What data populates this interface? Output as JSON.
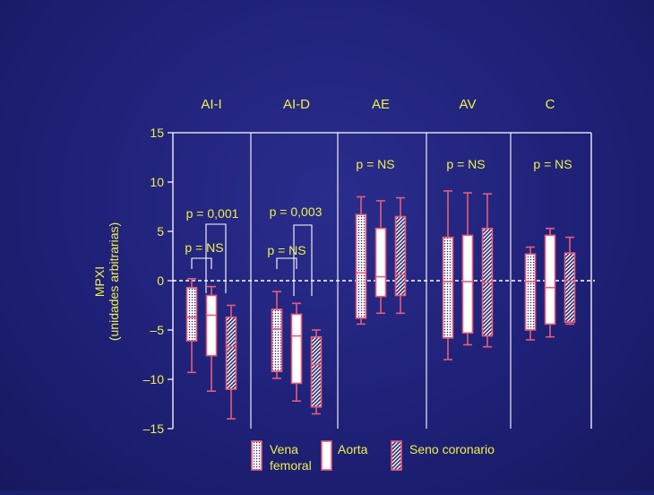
{
  "chart_data": {
    "type": "box",
    "ylabel": "MPXI",
    "ylabel2": "(unidades arbitrarias)",
    "ylim": [
      -15,
      15
    ],
    "yticks": [
      {
        "v": 15,
        "label": "15"
      },
      {
        "v": 10,
        "label": "10"
      },
      {
        "v": 5,
        "label": "5"
      },
      {
        "v": 0,
        "label": "0"
      },
      {
        "v": -5,
        "label": "–5"
      },
      {
        "v": -10,
        "label": "–10"
      },
      {
        "v": -15,
        "label": "–15"
      }
    ],
    "groups": [
      {
        "label": "AI-I",
        "p_values": [
          "p = 0,001",
          "p = NS"
        ],
        "boxes": [
          {
            "series": "Vena femoral",
            "whisker_low": -9.3,
            "q1": -6.1,
            "median": -3.7,
            "q3": -0.7,
            "whisker_high": 0.2
          },
          {
            "series": "Aorta",
            "whisker_low": -11.2,
            "q1": -7.6,
            "median": -3.5,
            "q3": -1.5,
            "whisker_high": -0.6
          },
          {
            "series": "Seno coronario",
            "whisker_low": -14.0,
            "q1": -11.0,
            "median": -6.7,
            "q3": -3.7,
            "whisker_high": -2.5
          }
        ]
      },
      {
        "label": "AI-D",
        "p_values": [
          "p = 0,003",
          "p = NS"
        ],
        "boxes": [
          {
            "series": "Vena femoral",
            "whisker_low": -9.9,
            "q1": -9.2,
            "median": -4.9,
            "q3": -2.9,
            "whisker_high": -1.1
          },
          {
            "series": "Aorta",
            "whisker_low": -12.2,
            "q1": -10.4,
            "median": -5.6,
            "q3": -3.4,
            "whisker_high": -2.3
          },
          {
            "series": "Seno coronario",
            "whisker_low": -13.5,
            "q1": -12.8,
            "median": -8.5,
            "q3": -5.7,
            "whisker_high": -5.0
          }
        ]
      },
      {
        "label": "AE",
        "p_values": [
          "p = NS"
        ],
        "boxes": [
          {
            "series": "Vena femoral",
            "whisker_low": -4.4,
            "q1": -3.8,
            "median": 0.8,
            "q3": 6.7,
            "whisker_high": 8.5
          },
          {
            "series": "Aorta",
            "whisker_low": -3.3,
            "q1": -1.6,
            "median": 0.4,
            "q3": 5.3,
            "whisker_high": 8.1
          },
          {
            "series": "Seno coronario",
            "whisker_low": -3.3,
            "q1": -1.5,
            "median": 0.6,
            "q3": 6.5,
            "whisker_high": 8.4
          }
        ]
      },
      {
        "label": "AV",
        "p_values": [
          "p = NS"
        ],
        "boxes": [
          {
            "series": "Vena femoral",
            "whisker_low": -8.0,
            "q1": -5.8,
            "median": -0.1,
            "q3": 4.4,
            "whisker_high": 9.1
          },
          {
            "series": "Aorta",
            "whisker_low": -6.5,
            "q1": -5.3,
            "median": -0.1,
            "q3": 4.6,
            "whisker_high": 8.9
          },
          {
            "series": "Seno coronario",
            "whisker_low": -6.7,
            "q1": -5.6,
            "median": -0.2,
            "q3": 5.3,
            "whisker_high": 8.8
          }
        ]
      },
      {
        "label": "C",
        "p_values": [
          "p = NS"
        ],
        "boxes": [
          {
            "series": "Vena femoral",
            "whisker_low": -6.0,
            "q1": -5.0,
            "median": -0.1,
            "q3": 2.7,
            "whisker_high": 3.4
          },
          {
            "series": "Aorta",
            "whisker_low": -5.7,
            "q1": -4.4,
            "median": -0.7,
            "q3": 4.6,
            "whisker_high": 5.3
          },
          {
            "series": "Seno coronario",
            "whisker_low": -4.4,
            "q1": -4.2,
            "median": 0.0,
            "q3": 2.8,
            "whisker_high": 4.4
          }
        ]
      }
    ],
    "legend": {
      "position": "bottom",
      "items": [
        {
          "name": "Vena",
          "name2": "femoral",
          "pattern": "dots"
        },
        {
          "name": "Aorta",
          "name2": "",
          "pattern": "solid"
        },
        {
          "name": "Seno coronario",
          "name2": "",
          "pattern": "hatch"
        }
      ]
    },
    "colors": {
      "background": "#1f2178",
      "text": "#f0f04a",
      "axes": "#ffffff",
      "box_edge": "#e65c7a",
      "zero_line": "#ffffff"
    },
    "grid": false
  }
}
